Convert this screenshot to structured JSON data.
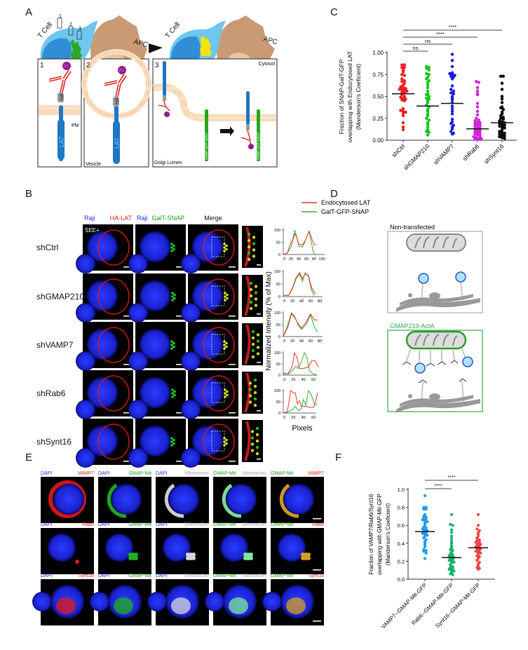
{
  "panels": {
    "A": "A",
    "B": "B",
    "C": "C",
    "D": "D",
    "E": "E",
    "F": "F"
  },
  "schematic_a": {
    "t_cell": "T Cell",
    "apc": "APC",
    "box_numbers": [
      "1",
      "2",
      "3"
    ],
    "bg": "BG",
    "ha": "HA",
    "lat": "LAT",
    "pm": "PM",
    "vesicle": "Vesicle",
    "cytosol": "Cytosol",
    "golgi_lumen": "Golgi Lumen",
    "snap": "SNAP",
    "gfp": "GFP",
    "galt": "GALT"
  },
  "panel_b": {
    "legend": [
      {
        "label": "Endocytosed LAT",
        "color": "#e8302a"
      },
      {
        "label": "GalT-GFP-SNAP",
        "color": "#2fb52f"
      }
    ],
    "headers": [
      {
        "left": "Raji",
        "right": "HA-LAT",
        "right_color": "#e02020"
      },
      {
        "left": "Raji",
        "right": "GalT-SNAP",
        "right_color": "#1aa01a"
      },
      {
        "left": "",
        "right": "Merge",
        "right_color": "#111111"
      }
    ],
    "see_label": "SEE+",
    "rows": [
      "shCtrl",
      "shGMAP210",
      "shVAMP7",
      "shRab6",
      "shSynt16"
    ],
    "ylabel": "Normalized Intensity (% of Max)",
    "xlabel": "Pixels",
    "profiles": [
      {
        "xticks": [
          "0",
          "20",
          "40",
          "60",
          "80",
          "100"
        ],
        "xmax": 100,
        "yticks": [
          "0",
          "50",
          "100"
        ],
        "red": [
          [
            0,
            0
          ],
          [
            10,
            5
          ],
          [
            20,
            50
          ],
          [
            25,
            60
          ],
          [
            30,
            85
          ],
          [
            35,
            70
          ],
          [
            40,
            42
          ],
          [
            50,
            40
          ],
          [
            58,
            60
          ],
          [
            67,
            95
          ],
          [
            75,
            60
          ],
          [
            80,
            40
          ],
          [
            85,
            42
          ]
        ],
        "green": [
          [
            0,
            0
          ],
          [
            10,
            5
          ],
          [
            20,
            30
          ],
          [
            30,
            100
          ],
          [
            35,
            70
          ],
          [
            40,
            35
          ],
          [
            50,
            30
          ],
          [
            58,
            60
          ],
          [
            67,
            95
          ],
          [
            73,
            50
          ],
          [
            78,
            8
          ],
          [
            82,
            2
          ]
        ]
      },
      {
        "xticks": [
          "0",
          "20",
          "40",
          "60",
          "80"
        ],
        "xmax": 80,
        "yticks": [
          "0",
          "50",
          "100"
        ],
        "red": [
          [
            0,
            5
          ],
          [
            12,
            5
          ],
          [
            20,
            35
          ],
          [
            28,
            75
          ],
          [
            36,
            95
          ],
          [
            42,
            70
          ],
          [
            48,
            90
          ],
          [
            55,
            85
          ],
          [
            62,
            35
          ],
          [
            70,
            12
          ]
        ],
        "green": [
          [
            0,
            5
          ],
          [
            12,
            5
          ],
          [
            20,
            30
          ],
          [
            28,
            70
          ],
          [
            36,
            90
          ],
          [
            42,
            60
          ],
          [
            48,
            95
          ],
          [
            55,
            80
          ],
          [
            62,
            25
          ],
          [
            68,
            5
          ]
        ]
      },
      {
        "xticks": [
          "0",
          "20",
          "40",
          "60",
          "80"
        ],
        "xmax": 80,
        "yticks": [
          "0",
          "50",
          "100"
        ],
        "red": [
          [
            0,
            0
          ],
          [
            10,
            40
          ],
          [
            18,
            95
          ],
          [
            25,
            80
          ],
          [
            32,
            55
          ],
          [
            40,
            35
          ],
          [
            50,
            60
          ],
          [
            60,
            95
          ],
          [
            68,
            70
          ],
          [
            75,
            70
          ]
        ],
        "green": [
          [
            0,
            0
          ],
          [
            10,
            50
          ],
          [
            18,
            100
          ],
          [
            25,
            85
          ],
          [
            32,
            50
          ],
          [
            40,
            30
          ],
          [
            50,
            50
          ],
          [
            60,
            90
          ],
          [
            68,
            40
          ],
          [
            75,
            20
          ]
        ]
      },
      {
        "xticks": [
          "0",
          "20",
          "40",
          "60"
        ],
        "xmax": 70,
        "yticks": [
          "0",
          "50",
          "100"
        ],
        "red": [
          [
            0,
            5
          ],
          [
            10,
            8
          ],
          [
            18,
            40
          ],
          [
            22,
            100
          ],
          [
            27,
            80
          ],
          [
            32,
            30
          ],
          [
            40,
            30
          ],
          [
            50,
            35
          ],
          [
            57,
            65
          ],
          [
            63,
            65
          ],
          [
            70,
            35
          ]
        ],
        "green": [
          [
            0,
            10
          ],
          [
            10,
            5
          ],
          [
            18,
            20
          ],
          [
            25,
            40
          ],
          [
            30,
            30
          ],
          [
            36,
            60
          ],
          [
            42,
            100
          ],
          [
            47,
            80
          ],
          [
            52,
            20
          ],
          [
            60,
            5
          ],
          [
            68,
            0
          ]
        ]
      },
      {
        "xticks": [
          "0",
          "20",
          "40",
          "60"
        ],
        "xmax": 70,
        "yticks": [
          "0",
          "50",
          "100"
        ],
        "red": [
          [
            0,
            0
          ],
          [
            8,
            5
          ],
          [
            15,
            100
          ],
          [
            20,
            90
          ],
          [
            24,
            90
          ],
          [
            28,
            40
          ],
          [
            32,
            55
          ],
          [
            36,
            30
          ],
          [
            45,
            30
          ],
          [
            52,
            25
          ],
          [
            60,
            25
          ],
          [
            65,
            55
          ],
          [
            68,
            90
          ]
        ],
        "green": [
          [
            0,
            0
          ],
          [
            10,
            5
          ],
          [
            18,
            15
          ],
          [
            24,
            30
          ],
          [
            30,
            10
          ],
          [
            36,
            20
          ],
          [
            40,
            60
          ],
          [
            45,
            35
          ],
          [
            50,
            100
          ],
          [
            56,
            80
          ],
          [
            62,
            40
          ],
          [
            68,
            35
          ]
        ]
      }
    ]
  },
  "panel_d": {
    "non_transfected": "Non-transfected",
    "gmap_acta": "GMAP210-ActA",
    "gmap_color": "#2fa84a"
  },
  "panel_e": {
    "rows": [
      {
        "target": "VAMP7",
        "headers": [
          [
            "DAPI",
            "VAMP7"
          ],
          [
            "DAPI",
            "GMAP-Mit"
          ],
          [
            "DAPI",
            "Mitotracker"
          ],
          [
            "GMAP-Mit",
            "Mitotracker"
          ],
          [
            "GMAP-Mit",
            "VAMP7"
          ]
        ]
      },
      {
        "target": "Rab6",
        "headers": [
          [
            "DAPI",
            "Rab6"
          ],
          [
            "DAPI",
            "GMAP-Mit"
          ],
          [
            "DAPI",
            "Mitotracker"
          ],
          [
            "GMAP-Mit",
            "Mitotracker"
          ],
          [
            "GMAP-Mit",
            "Rab6"
          ]
        ]
      },
      {
        "target": "Synt16",
        "headers": [
          [
            "DAPI",
            "Synt16"
          ],
          [
            "DAPI",
            "GMAP-Mit"
          ],
          [
            "DAPI",
            "Mitotracker"
          ],
          [
            "GMAP-Mit",
            "Mitotracker"
          ],
          [
            "GMAP-Mit",
            "Synt16"
          ]
        ]
      }
    ],
    "label_colors": {
      "DAPI": "#2a2ae0",
      "GMAP-Mit": "#1aa01a",
      "Mitotracker": "#aaaaaa",
      "VAMP7": "#e02020",
      "Rab6": "#e02020",
      "Synt16": "#e02020"
    }
  },
  "chart_data": [
    {
      "id": "C",
      "type": "scatter",
      "title": "",
      "ylabel_lines": [
        "Fraction of SNAP-GalT-GFP",
        "overlapping with Endocytosed LAT",
        "(Manderson's Coeficient)"
      ],
      "ylim": [
        0,
        1
      ],
      "yticks": [
        "0.00",
        "0.25",
        "0.50",
        "0.75",
        "1.00"
      ],
      "categories": [
        "shCtrl",
        "shGMAP210",
        "shVAMP7",
        "shRab6",
        "shSynt16"
      ],
      "colors": [
        "#f01c1c",
        "#12c412",
        "#1a1ad8",
        "#d020d8",
        "#000000"
      ],
      "means": [
        0.53,
        0.39,
        0.42,
        0.13,
        0.2
      ],
      "significance": [
        {
          "from": 0,
          "to": 1,
          "label": "ns"
        },
        {
          "from": 0,
          "to": 2,
          "label": "ns"
        },
        {
          "from": 0,
          "to": 3,
          "label": "****"
        },
        {
          "from": 0,
          "to": 4,
          "label": "****"
        }
      ],
      "series": [
        {
          "name": "shCtrl",
          "values": [
            0.86,
            0.86,
            0.83,
            0.83,
            0.8,
            0.78,
            0.75,
            0.74,
            0.7,
            0.68,
            0.67,
            0.65,
            0.63,
            0.61,
            0.6,
            0.59,
            0.58,
            0.58,
            0.57,
            0.56,
            0.55,
            0.54,
            0.52,
            0.5,
            0.49,
            0.48,
            0.47,
            0.46,
            0.45,
            0.36,
            0.34,
            0.33,
            0.32,
            0.31,
            0.28,
            0.2,
            0.15,
            0.12
          ]
        },
        {
          "name": "shGMAP210",
          "values": [
            0.84,
            0.83,
            0.82,
            0.8,
            0.76,
            0.75,
            0.72,
            0.7,
            0.68,
            0.66,
            0.63,
            0.6,
            0.56,
            0.53,
            0.52,
            0.5,
            0.48,
            0.47,
            0.45,
            0.43,
            0.4,
            0.38,
            0.35,
            0.33,
            0.3,
            0.28,
            0.25,
            0.23,
            0.2,
            0.18,
            0.15,
            0.12,
            0.1,
            0.09,
            0.06
          ]
        },
        {
          "name": "shVAMP7",
          "values": [
            0.98,
            0.91,
            0.84,
            0.77,
            0.76,
            0.75,
            0.74,
            0.73,
            0.72,
            0.7,
            0.62,
            0.58,
            0.56,
            0.54,
            0.53,
            0.5,
            0.48,
            0.46,
            0.43,
            0.39,
            0.36,
            0.33,
            0.3,
            0.24,
            0.21,
            0.19,
            0.17,
            0.15,
            0.13,
            0.1,
            0.08,
            0.07
          ]
        },
        {
          "name": "shRab6",
          "values": [
            0.67,
            0.66,
            0.6,
            0.56,
            0.53,
            0.52,
            0.42,
            0.38,
            0.33,
            0.29,
            0.25,
            0.23,
            0.22,
            0.21,
            0.2,
            0.19,
            0.18,
            0.17,
            0.16,
            0.15,
            0.14,
            0.13,
            0.12,
            0.11,
            0.1,
            0.09,
            0.08,
            0.07,
            0.06,
            0.05,
            0.04,
            0.03,
            0.02,
            0.02,
            0.01,
            0.01,
            0.01
          ]
        },
        {
          "name": "shSynt16",
          "values": [
            0.73,
            0.73,
            0.65,
            0.58,
            0.5,
            0.47,
            0.43,
            0.38,
            0.37,
            0.35,
            0.32,
            0.3,
            0.28,
            0.26,
            0.25,
            0.24,
            0.22,
            0.21,
            0.2,
            0.19,
            0.18,
            0.17,
            0.16,
            0.15,
            0.14,
            0.12,
            0.1,
            0.09,
            0.08,
            0.07,
            0.06,
            0.05,
            0.04,
            0.03,
            0.02
          ]
        }
      ]
    },
    {
      "id": "F",
      "type": "scatter",
      "title": "",
      "ylabel_lines": [
        "Fraction of VAMP7/Rab6/Synt16",
        "overlapping with GMAP-Mit-GFP",
        "(Manderson's Coeficient)"
      ],
      "ylim": [
        0,
        1
      ],
      "yticks": [
        "0.0",
        "0.2",
        "0.4",
        "0.6",
        "0.8",
        "1.0"
      ],
      "categories": [
        "VAMP7--GMAP-Mit-GFP",
        "Rab6--GMAP-Mit-GFP",
        "Synt16--GMAP-Mit-GFP"
      ],
      "colors": [
        "#1e9be8",
        "#10b26a",
        "#ee4444"
      ],
      "means": [
        0.53,
        0.24,
        0.35
      ],
      "significance": [
        {
          "from": 0,
          "to": 1,
          "label": "****"
        },
        {
          "from": 0,
          "to": 2,
          "label": "****"
        }
      ],
      "series": [
        {
          "name": "VAMP7--GMAP-Mit-GFP",
          "values": [
            0.93,
            0.8,
            0.8,
            0.78,
            0.78,
            0.72,
            0.7,
            0.69,
            0.68,
            0.67,
            0.66,
            0.65,
            0.64,
            0.62,
            0.6,
            0.58,
            0.57,
            0.56,
            0.55,
            0.54,
            0.53,
            0.52,
            0.51,
            0.5,
            0.49,
            0.48,
            0.46,
            0.44,
            0.42,
            0.4,
            0.38,
            0.36,
            0.33,
            0.32,
            0.31,
            0.29,
            0.23
          ]
        },
        {
          "name": "Rab6--GMAP-Mit-GFP",
          "values": [
            0.72,
            0.61,
            0.6,
            0.55,
            0.52,
            0.48,
            0.45,
            0.42,
            0.4,
            0.37,
            0.35,
            0.33,
            0.32,
            0.3,
            0.28,
            0.27,
            0.26,
            0.25,
            0.24,
            0.23,
            0.22,
            0.21,
            0.2,
            0.19,
            0.18,
            0.16,
            0.14,
            0.13,
            0.12,
            0.11,
            0.1,
            0.09,
            0.08,
            0.06,
            0.05
          ]
        },
        {
          "name": "Synt16--GMAP-Mit-GFP",
          "values": [
            0.72,
            0.6,
            0.56,
            0.54,
            0.52,
            0.5,
            0.48,
            0.46,
            0.44,
            0.43,
            0.42,
            0.41,
            0.4,
            0.39,
            0.38,
            0.37,
            0.36,
            0.35,
            0.34,
            0.33,
            0.32,
            0.31,
            0.3,
            0.29,
            0.28,
            0.26,
            0.25,
            0.23,
            0.21,
            0.19,
            0.17,
            0.15,
            0.13,
            0.12,
            0.11
          ]
        }
      ]
    }
  ]
}
